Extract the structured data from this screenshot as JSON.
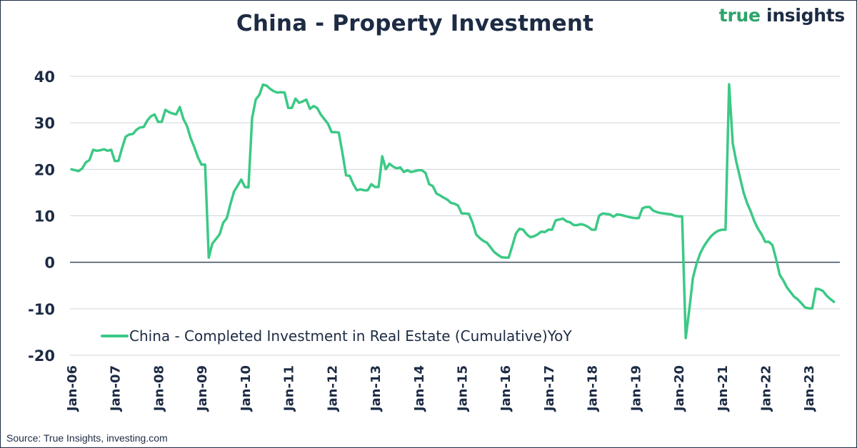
{
  "brand": {
    "part1": "true",
    "part2": " insights"
  },
  "source": "Source: True Insights, investing.com",
  "colors": {
    "series": "#3cc986",
    "text": "#1d2b44",
    "grid": "#cfd6de",
    "zero": "#3a4a5c"
  },
  "chart_data": {
    "type": "line",
    "title": "China - Property Investment",
    "xlabel": "",
    "ylabel": "",
    "ylim": [
      -20,
      40
    ],
    "yticks": [
      -20,
      -10,
      0,
      10,
      20,
      30,
      40
    ],
    "grid": true,
    "legend_position": "bottom-left",
    "x_tick_labels": [
      "Jan-06",
      "Jan-07",
      "Jan-08",
      "Jan-09",
      "Jan-10",
      "Jan-11",
      "Jan-12",
      "Jan-13",
      "Jan-14",
      "Jan-15",
      "Jan-16",
      "Jan-17",
      "Jan-18",
      "Jan-19",
      "Jan-20",
      "Jan-21",
      "Jan-22",
      "Jan-23"
    ],
    "series": [
      {
        "name": "China - Completed Investment in Real Estate (Cumulative)YoY",
        "points": [
          [
            "2006-01",
            20
          ],
          [
            "2006-02",
            19.8
          ],
          [
            "2006-03",
            19.6
          ],
          [
            "2006-04",
            20.2
          ],
          [
            "2006-05",
            21.5
          ],
          [
            "2006-06",
            22
          ],
          [
            "2006-07",
            24.2
          ],
          [
            "2006-08",
            24.0
          ],
          [
            "2006-09",
            24.1
          ],
          [
            "2006-10",
            24.3
          ],
          [
            "2006-11",
            24.0
          ],
          [
            "2006-12",
            24.2
          ],
          [
            "2007-01",
            21.8
          ],
          [
            "2007-02",
            21.8
          ],
          [
            "2007-03",
            24.5
          ],
          [
            "2007-04",
            27.0
          ],
          [
            "2007-05",
            27.5
          ],
          [
            "2007-06",
            27.6
          ],
          [
            "2007-07",
            28.5
          ],
          [
            "2007-08",
            29.0
          ],
          [
            "2007-09",
            29.1
          ],
          [
            "2007-10",
            30.5
          ],
          [
            "2007-11",
            31.4
          ],
          [
            "2007-12",
            31.8
          ],
          [
            "2008-01",
            30.2
          ],
          [
            "2008-02",
            30.2
          ],
          [
            "2008-03",
            32.8
          ],
          [
            "2008-04",
            32.3
          ],
          [
            "2008-05",
            32.0
          ],
          [
            "2008-06",
            31.8
          ],
          [
            "2008-07",
            33.4
          ],
          [
            "2008-08",
            30.8
          ],
          [
            "2008-09",
            29.3
          ],
          [
            "2008-10",
            26.7
          ],
          [
            "2008-11",
            24.8
          ],
          [
            "2008-12",
            22.6
          ],
          [
            "2009-01",
            21.0
          ],
          [
            "2009-02",
            21.0
          ],
          [
            "2009-03",
            1.0
          ],
          [
            "2009-04",
            4.0
          ],
          [
            "2009-05",
            5.0
          ],
          [
            "2009-06",
            6.0
          ],
          [
            "2009-07",
            8.5
          ],
          [
            "2009-08",
            9.5
          ],
          [
            "2009-09",
            12.5
          ],
          [
            "2009-10",
            15.2
          ],
          [
            "2009-11",
            16.5
          ],
          [
            "2009-12",
            17.8
          ],
          [
            "2010-01",
            16.2
          ],
          [
            "2010-02",
            16.1
          ],
          [
            "2010-03",
            31.0
          ],
          [
            "2010-04",
            35.0
          ],
          [
            "2010-05",
            36.0
          ],
          [
            "2010-06",
            38.2
          ],
          [
            "2010-07",
            38.0
          ],
          [
            "2010-08",
            37.3
          ],
          [
            "2010-09",
            36.8
          ],
          [
            "2010-10",
            36.5
          ],
          [
            "2010-11",
            36.6
          ],
          [
            "2010-12",
            36.5
          ],
          [
            "2011-01",
            33.2
          ],
          [
            "2011-02",
            33.2
          ],
          [
            "2011-03",
            35.2
          ],
          [
            "2011-04",
            34.3
          ],
          [
            "2011-05",
            34.6
          ],
          [
            "2011-06",
            35.0
          ],
          [
            "2011-07",
            33.0
          ],
          [
            "2011-08",
            33.6
          ],
          [
            "2011-09",
            33.2
          ],
          [
            "2011-10",
            31.8
          ],
          [
            "2011-11",
            30.8
          ],
          [
            "2011-12",
            29.8
          ],
          [
            "2012-01",
            28.0
          ],
          [
            "2012-02",
            28.0
          ],
          [
            "2012-03",
            27.9
          ],
          [
            "2012-04",
            23.5
          ],
          [
            "2012-05",
            18.7
          ],
          [
            "2012-06",
            18.6
          ],
          [
            "2012-07",
            16.8
          ],
          [
            "2012-08",
            15.5
          ],
          [
            "2012-09",
            15.7
          ],
          [
            "2012-10",
            15.5
          ],
          [
            "2012-11",
            15.5
          ],
          [
            "2012-12",
            16.8
          ],
          [
            "2013-01",
            16.2
          ],
          [
            "2013-02",
            16.2
          ],
          [
            "2013-03",
            22.8
          ],
          [
            "2013-04",
            20.0
          ],
          [
            "2013-05",
            21.2
          ],
          [
            "2013-06",
            20.6
          ],
          [
            "2013-07",
            20.2
          ],
          [
            "2013-08",
            20.4
          ],
          [
            "2013-09",
            19.4
          ],
          [
            "2013-10",
            19.8
          ],
          [
            "2013-11",
            19.4
          ],
          [
            "2013-12",
            19.6
          ],
          [
            "2014-01",
            19.8
          ],
          [
            "2014-02",
            19.8
          ],
          [
            "2014-03",
            19.2
          ],
          [
            "2014-04",
            16.8
          ],
          [
            "2014-05",
            16.4
          ],
          [
            "2014-06",
            14.8
          ],
          [
            "2014-07",
            14.4
          ],
          [
            "2014-08",
            13.9
          ],
          [
            "2014-09",
            13.5
          ],
          [
            "2014-10",
            12.8
          ],
          [
            "2014-11",
            12.6
          ],
          [
            "2014-12",
            12.2
          ],
          [
            "2015-01",
            10.5
          ],
          [
            "2015-02",
            10.5
          ],
          [
            "2015-03",
            10.4
          ],
          [
            "2015-04",
            8.5
          ],
          [
            "2015-05",
            6.0
          ],
          [
            "2015-06",
            5.2
          ],
          [
            "2015-07",
            4.6
          ],
          [
            "2015-08",
            4.2
          ],
          [
            "2015-09",
            3.2
          ],
          [
            "2015-10",
            2.2
          ],
          [
            "2015-11",
            1.6
          ],
          [
            "2015-12",
            1.1
          ],
          [
            "2016-01",
            1.0
          ],
          [
            "2016-02",
            1.0
          ],
          [
            "2016-03",
            3.5
          ],
          [
            "2016-04",
            6.2
          ],
          [
            "2016-05",
            7.2
          ],
          [
            "2016-06",
            7.0
          ],
          [
            "2016-07",
            6.0
          ],
          [
            "2016-08",
            5.4
          ],
          [
            "2016-09",
            5.6
          ],
          [
            "2016-10",
            6.0
          ],
          [
            "2016-11",
            6.6
          ],
          [
            "2016-12",
            6.5
          ],
          [
            "2017-01",
            7.0
          ],
          [
            "2017-02",
            7.0
          ],
          [
            "2017-03",
            9.0
          ],
          [
            "2017-04",
            9.2
          ],
          [
            "2017-05",
            9.4
          ],
          [
            "2017-06",
            8.8
          ],
          [
            "2017-07",
            8.6
          ],
          [
            "2017-08",
            8.0
          ],
          [
            "2017-09",
            8.0
          ],
          [
            "2017-10",
            8.2
          ],
          [
            "2017-11",
            8.0
          ],
          [
            "2017-12",
            7.6
          ],
          [
            "2018-01",
            7.0
          ],
          [
            "2018-02",
            7.0
          ],
          [
            "2018-03",
            10.0
          ],
          [
            "2018-04",
            10.5
          ],
          [
            "2018-05",
            10.4
          ],
          [
            "2018-06",
            10.3
          ],
          [
            "2018-07",
            9.8
          ],
          [
            "2018-08",
            10.3
          ],
          [
            "2018-09",
            10.2
          ],
          [
            "2018-10",
            10.0
          ],
          [
            "2018-11",
            9.8
          ],
          [
            "2018-12",
            9.6
          ],
          [
            "2019-01",
            9.5
          ],
          [
            "2019-02",
            9.5
          ],
          [
            "2019-03",
            11.6
          ],
          [
            "2019-04",
            11.9
          ],
          [
            "2019-05",
            11.9
          ],
          [
            "2019-06",
            11.1
          ],
          [
            "2019-07",
            10.8
          ],
          [
            "2019-08",
            10.6
          ],
          [
            "2019-09",
            10.5
          ],
          [
            "2019-10",
            10.4
          ],
          [
            "2019-11",
            10.3
          ],
          [
            "2019-12",
            10.0
          ],
          [
            "2020-01",
            9.9
          ],
          [
            "2020-02",
            9.9
          ],
          [
            "2020-03",
            -16.3
          ],
          [
            "2020-04",
            -10.0
          ],
          [
            "2020-05",
            -3.3
          ],
          [
            "2020-06",
            -0.3
          ],
          [
            "2020-07",
            1.9
          ],
          [
            "2020-08",
            3.4
          ],
          [
            "2020-09",
            4.6
          ],
          [
            "2020-10",
            5.6
          ],
          [
            "2020-11",
            6.3
          ],
          [
            "2020-12",
            6.8
          ],
          [
            "2021-01",
            7.0
          ],
          [
            "2021-02",
            7.0
          ],
          [
            "2021-03",
            38.3
          ],
          [
            "2021-04",
            25.6
          ],
          [
            "2021-05",
            21.6
          ],
          [
            "2021-06",
            18.3
          ],
          [
            "2021-07",
            15.0
          ],
          [
            "2021-08",
            12.7
          ],
          [
            "2021-09",
            10.9
          ],
          [
            "2021-10",
            8.8
          ],
          [
            "2021-11",
            7.2
          ],
          [
            "2021-12",
            6.0
          ],
          [
            "2022-01",
            4.4
          ],
          [
            "2022-02",
            4.4
          ],
          [
            "2022-03",
            3.7
          ],
          [
            "2022-04",
            0.7
          ],
          [
            "2022-05",
            -2.7
          ],
          [
            "2022-06",
            -3.9
          ],
          [
            "2022-07",
            -5.4
          ],
          [
            "2022-08",
            -6.4
          ],
          [
            "2022-09",
            -7.4
          ],
          [
            "2022-10",
            -8.0
          ],
          [
            "2022-11",
            -8.8
          ],
          [
            "2022-12",
            -9.7
          ],
          [
            "2023-01",
            -9.9
          ],
          [
            "2023-02",
            -9.9
          ],
          [
            "2023-03",
            -5.7
          ],
          [
            "2023-04",
            -5.8
          ],
          [
            "2023-05",
            -6.2
          ],
          [
            "2023-06",
            -7.2
          ],
          [
            "2023-07",
            -7.9
          ],
          [
            "2023-08",
            -8.5
          ]
        ]
      }
    ]
  }
}
